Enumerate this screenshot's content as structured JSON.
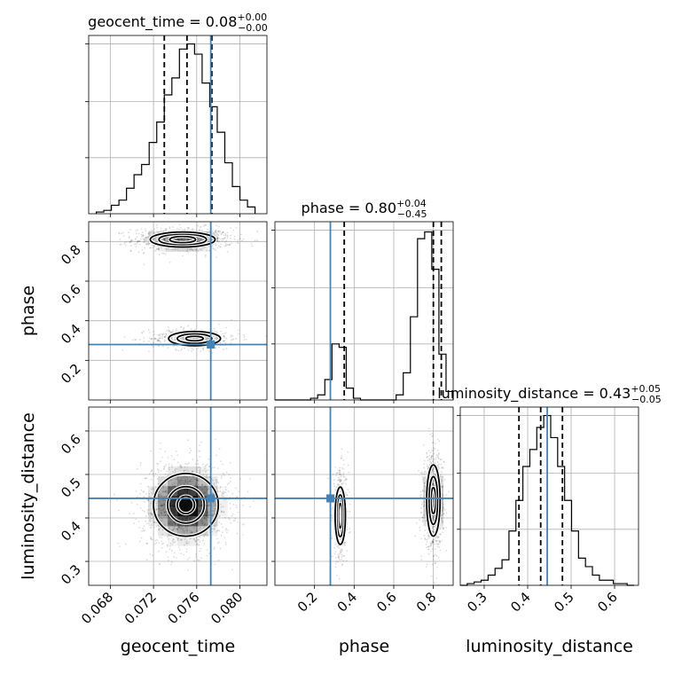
{
  "chart_data": {
    "type": "corner",
    "parameters": [
      "geocent_time",
      "phase",
      "luminosity_distance"
    ],
    "truth": {
      "geocent_time": 0.0773,
      "phase": 0.28,
      "luminosity_distance": 0.445
    },
    "titles": [
      {
        "param": "geocent_time",
        "text": "geocent_time = 0.08",
        "sup": "+0.00",
        "sub": "−0.00"
      },
      {
        "param": "phase",
        "text": "phase = 0.80",
        "sup": "+0.04",
        "sub": "−0.45"
      },
      {
        "param": "luminosity_distance",
        "text": "luminosity_distance = 0.43",
        "sup": "+0.05",
        "sub": "−0.05"
      }
    ],
    "axes": {
      "geocent_time": {
        "range": [
          0.066,
          0.0825
        ],
        "ticks": [
          0.068,
          0.072,
          0.076,
          0.08
        ],
        "tick_labels": [
          "0.068",
          "0.072",
          "0.076",
          "0.080"
        ]
      },
      "phase": {
        "range": [
          0.0,
          0.9
        ],
        "ticks": [
          0.2,
          0.4,
          0.6,
          0.8
        ],
        "tick_labels": [
          "0.2",
          "0.4",
          "0.6",
          "0.8"
        ]
      },
      "luminosity_distance": {
        "range": [
          0.245,
          0.655
        ],
        "ticks": [
          0.3,
          0.4,
          0.5,
          0.6
        ],
        "tick_labels": [
          "0.3",
          "0.4",
          "0.5",
          "0.6"
        ]
      }
    },
    "x_labels": [
      "geocent_time",
      "phase",
      "luminosity_distance"
    ],
    "y_labels": [
      "phase",
      "luminosity_distance"
    ],
    "histograms": [
      {
        "param": "geocent_time",
        "bin_edges": [
          0.0667,
          0.0674,
          0.0681,
          0.0688,
          0.0695,
          0.0702,
          0.0709,
          0.0716,
          0.0723,
          0.073,
          0.0737,
          0.0744,
          0.0751,
          0.0758,
          0.0765,
          0.0772,
          0.0779,
          0.0786,
          0.0793,
          0.08,
          0.0807,
          0.0814
        ],
        "counts": [
          0.01,
          0.02,
          0.05,
          0.08,
          0.15,
          0.23,
          0.29,
          0.42,
          0.54,
          0.7,
          0.8,
          0.97,
          1.0,
          0.94,
          0.77,
          0.63,
          0.48,
          0.3,
          0.16,
          0.08,
          0.04
        ],
        "quantiles": [
          0.073,
          0.0751,
          0.0774
        ],
        "truth": 0.0773,
        "yticks": [
          0.33,
          0.66,
          1.0
        ]
      },
      {
        "param": "phase",
        "bin_edges": [
          0.0,
          0.036,
          0.072,
          0.108,
          0.144,
          0.18,
          0.216,
          0.252,
          0.288,
          0.324,
          0.36,
          0.396,
          0.432,
          0.468,
          0.504,
          0.54,
          0.576,
          0.612,
          0.648,
          0.684,
          0.72,
          0.756,
          0.792,
          0.828,
          0.864,
          0.9
        ],
        "counts": [
          0,
          0,
          0,
          0,
          0,
          0.01,
          0.03,
          0.12,
          0.33,
          0.31,
          0.07,
          0.01,
          0,
          0,
          0,
          0,
          0,
          0.03,
          0.16,
          0.49,
          0.95,
          0.99,
          0.77,
          0.27,
          0.05
        ],
        "quantiles": [
          0.35,
          0.8,
          0.84
        ],
        "truth": 0.28,
        "yticks": [
          0.33,
          0.66,
          1.0
        ]
      },
      {
        "param": "luminosity_distance",
        "bin_edges": [
          0.245,
          0.261,
          0.277,
          0.293,
          0.309,
          0.325,
          0.341,
          0.357,
          0.373,
          0.389,
          0.405,
          0.421,
          0.437,
          0.453,
          0.469,
          0.485,
          0.501,
          0.517,
          0.533,
          0.549,
          0.565,
          0.581,
          0.597,
          0.613,
          0.629,
          0.645
        ],
        "counts": [
          0,
          0.01,
          0.02,
          0.03,
          0.06,
          0.1,
          0.15,
          0.32,
          0.5,
          0.7,
          0.8,
          0.93,
          1.0,
          0.87,
          0.7,
          0.5,
          0.32,
          0.16,
          0.11,
          0.06,
          0.03,
          0.03,
          0.01,
          0.01,
          0
        ],
        "quantiles": [
          0.38,
          0.43,
          0.48
        ],
        "truth": 0.445,
        "yticks": [
          0.33,
          0.66,
          1.0
        ]
      }
    ],
    "density_panels": [
      {
        "x": "geocent_time",
        "y": "phase",
        "modes": [
          {
            "cx": 0.0747,
            "cy": 0.81,
            "sx": 0.002,
            "sy": 0.026,
            "w": 0.66,
            "contours": [
              [
                0.0012,
                0.016
              ],
              [
                0.0022,
                0.028
              ],
              [
                0.003,
                0.038
              ]
            ]
          },
          {
            "cx": 0.0758,
            "cy": 0.31,
            "sx": 0.0018,
            "sy": 0.024,
            "w": 0.34,
            "contours": [
              [
                0.0008,
                0.012
              ],
              [
                0.0016,
                0.024
              ],
              [
                0.0024,
                0.036
              ]
            ]
          }
        ]
      },
      {
        "x": "geocent_time",
        "y": "luminosity_distance",
        "modes": [
          {
            "cx": 0.075,
            "cy": 0.43,
            "sx": 0.0018,
            "sy": 0.045,
            "w": 1.0,
            "contours": [
              [
                0.0008,
                0.02
              ],
              [
                0.0017,
                0.042
              ],
              [
                0.003,
                0.072
              ]
            ]
          }
        ]
      },
      {
        "x": "phase",
        "y": "luminosity_distance",
        "modes": [
          {
            "cx": 0.33,
            "cy": 0.405,
            "sx": 0.018,
            "sy": 0.045,
            "w": 0.34,
            "contours": [
              [
                0.01,
                0.028
              ],
              [
                0.018,
                0.048
              ],
              [
                0.026,
                0.066
              ]
            ]
          },
          {
            "cx": 0.8,
            "cy": 0.44,
            "sx": 0.022,
            "sy": 0.048,
            "w": 0.66,
            "contours": [
              [
                0.012,
                0.03
              ],
              [
                0.022,
                0.055
              ],
              [
                0.034,
                0.082
              ]
            ]
          }
        ]
      }
    ],
    "colors": {
      "truth": "#4682b4",
      "hist": "#000000",
      "grid": "#b0b0b0",
      "scatter": "#000000"
    },
    "grid": true
  }
}
